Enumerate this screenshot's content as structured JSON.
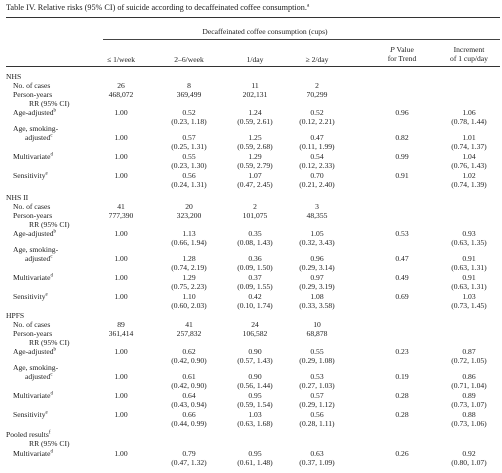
{
  "caption": {
    "text": "Table IV. Relative risks (95% CI) of suicide according to decaffeinated coffee consumption.",
    "sup": "a"
  },
  "header": {
    "group_label": "Decaffeinated coffee consumption (cups)",
    "col1": "≤ 1/week",
    "col2": "2–6/week",
    "col3": "1/day",
    "col4": "≥ 2/day",
    "p_line1_italic": "P",
    "p_line1_rest": " Value",
    "p_line2": "for Trend",
    "inc_line1": "Increment",
    "inc_line2": "of 1 cup/day"
  },
  "sections": [
    {
      "title": "NHS",
      "cases": {
        "label": "No. of cases",
        "values": [
          "26",
          "8",
          "11",
          "2"
        ]
      },
      "person_years": {
        "label": "Person-years",
        "values": [
          "468,072",
          "369,499",
          "202,131",
          "70,299"
        ]
      },
      "rr_label": "RR (95% CI)",
      "rows": [
        {
          "l1": "Age-adjusted",
          "sup": "b",
          "v": [
            "1.00",
            "0.52",
            "1.24",
            "0.52"
          ],
          "ci": [
            "",
            "(0.23, 1.18)",
            "(0.59, 2.61)",
            "(0.12, 2.21)"
          ],
          "p": "0.96",
          "inc": "1.06",
          "inc_ci": "(0.78, 1.44)"
        },
        {
          "l0": "Age, smoking-",
          "l1": "adjusted",
          "sup": "c",
          "v": [
            "1.00",
            "0.57",
            "1.25",
            "0.47"
          ],
          "ci": [
            "",
            "(0.25, 1.31)",
            "(0.59, 2.68)",
            "(0.11, 1.99)"
          ],
          "p": "0.82",
          "inc": "1.01",
          "inc_ci": "(0.74, 1.37)"
        },
        {
          "l1": "Multivariate",
          "sup": "d",
          "v": [
            "1.00",
            "0.55",
            "1.29",
            "0.54"
          ],
          "ci": [
            "",
            "(0.23, 1.30)",
            "(0.59, 2.79)",
            "(0.12, 2.33)"
          ],
          "p": "0.99",
          "inc": "1.04",
          "inc_ci": "(0.76, 1.43)"
        },
        {
          "l1": "Sensitivity",
          "sup": "e",
          "v": [
            "1.00",
            "0.56",
            "1.07",
            "0.70"
          ],
          "ci": [
            "",
            "(0.24, 1.31)",
            "(0.47, 2.45)",
            "(0.21, 2.40)"
          ],
          "p": "0.91",
          "inc": "1.02",
          "inc_ci": "(0.74, 1.39)"
        }
      ]
    },
    {
      "title": "NHS II",
      "cases": {
        "label": "No. of cases",
        "values": [
          "41",
          "20",
          "2",
          "3"
        ]
      },
      "person_years": {
        "label": "Person-years",
        "values": [
          "777,390",
          "323,200",
          "101,075",
          "48,355"
        ]
      },
      "rr_label": "RR (95% CI)",
      "rows": [
        {
          "l1": "Age-adjusted",
          "sup": "b",
          "v": [
            "1.00",
            "1.13",
            "0.35",
            "1.05"
          ],
          "ci": [
            "",
            "(0.66, 1.94)",
            "(0.08, 1.43)",
            "(0.32, 3.43)"
          ],
          "p": "0.53",
          "inc": "0.93",
          "inc_ci": "(0.63, 1.35)"
        },
        {
          "l0": "Age, smoking-",
          "l1": "adjusted",
          "sup": "c",
          "v": [
            "1.00",
            "1.28",
            "0.36",
            "0.96"
          ],
          "ci": [
            "",
            "(0.74, 2.19)",
            "(0.09, 1.50)",
            "(0.29, 3.14)"
          ],
          "p": "0.47",
          "inc": "0.91",
          "inc_ci": "(0.63, 1.31)"
        },
        {
          "l1": "Multivariate",
          "sup": "d",
          "v": [
            "1.00",
            "1.29",
            "0.37",
            "0.97"
          ],
          "ci": [
            "",
            "(0.75, 2.23)",
            "(0.09, 1.55)",
            "(0.29, 3.19)"
          ],
          "p": "0.49",
          "inc": "0.91",
          "inc_ci": "(0.63, 1.31)"
        },
        {
          "l1": "Sensitivity",
          "sup": "e",
          "v": [
            "1.00",
            "1.10",
            "0.42",
            "1.08"
          ],
          "ci": [
            "",
            "(0.60, 2.03)",
            "(0.10, 1.74)",
            "(0.33, 3.58)"
          ],
          "p": "0.69",
          "inc": "1.03",
          "inc_ci": "(0.73, 1.45)"
        }
      ]
    },
    {
      "title": "HPFS",
      "cases": {
        "label": "No. of cases",
        "values": [
          "89",
          "41",
          "24",
          "10"
        ]
      },
      "person_years": {
        "label": "Person-years",
        "values": [
          "361,414",
          "257,832",
          "106,582",
          "68,878"
        ]
      },
      "rr_label": "RR (95% CI)",
      "rows": [
        {
          "l1": "Age-adjusted",
          "sup": "b",
          "v": [
            "1.00",
            "0.62",
            "0.90",
            "0.55"
          ],
          "ci": [
            "",
            "(0.42, 0.90)",
            "(0.57, 1.43)",
            "(0.29, 1.08)"
          ],
          "p": "0.23",
          "inc": "0.87",
          "inc_ci": "(0.72, 1.05)"
        },
        {
          "l0": "Age, smoking-",
          "l1": "adjusted",
          "sup": "c",
          "v": [
            "1.00",
            "0.61",
            "0.90",
            "0.53"
          ],
          "ci": [
            "",
            "(0.42, 0.90)",
            "(0.56, 1.44)",
            "(0.27, 1.03)"
          ],
          "p": "0.19",
          "inc": "0.86",
          "inc_ci": "(0.71, 1.04)"
        },
        {
          "l1": "Multivariate",
          "sup": "d",
          "v": [
            "1.00",
            "0.64",
            "0.95",
            "0.57"
          ],
          "ci": [
            "",
            "(0.43, 0.94)",
            "(0.59, 1.54)",
            "(0.29, 1.12)"
          ],
          "p": "0.28",
          "inc": "0.89",
          "inc_ci": "(0.73, 1.07)"
        },
        {
          "l1": "Sensitivity",
          "sup": "e",
          "v": [
            "1.00",
            "0.66",
            "1.03",
            "0.56"
          ],
          "ci": [
            "",
            "(0.44, 0.99)",
            "(0.63, 1.68)",
            "(0.28, 1.11)"
          ],
          "p": "0.28",
          "inc": "0.88",
          "inc_ci": "(0.73, 1.06)"
        }
      ]
    }
  ],
  "pooled": {
    "title": "Pooled results",
    "title_sup": "f",
    "rr_label": "RR (95% CI)",
    "row": {
      "l1": "Multivariate",
      "sup": "d",
      "v": [
        "1.00",
        "0.79",
        "0.95",
        "0.63"
      ],
      "ci": [
        "",
        "(0.47, 1.32)",
        "(0.61, 1.48)",
        "(0.37, 1.09)"
      ],
      "p": "0.26",
      "inc": "0.92",
      "inc_ci": "(0.80, 1.07)"
    }
  }
}
